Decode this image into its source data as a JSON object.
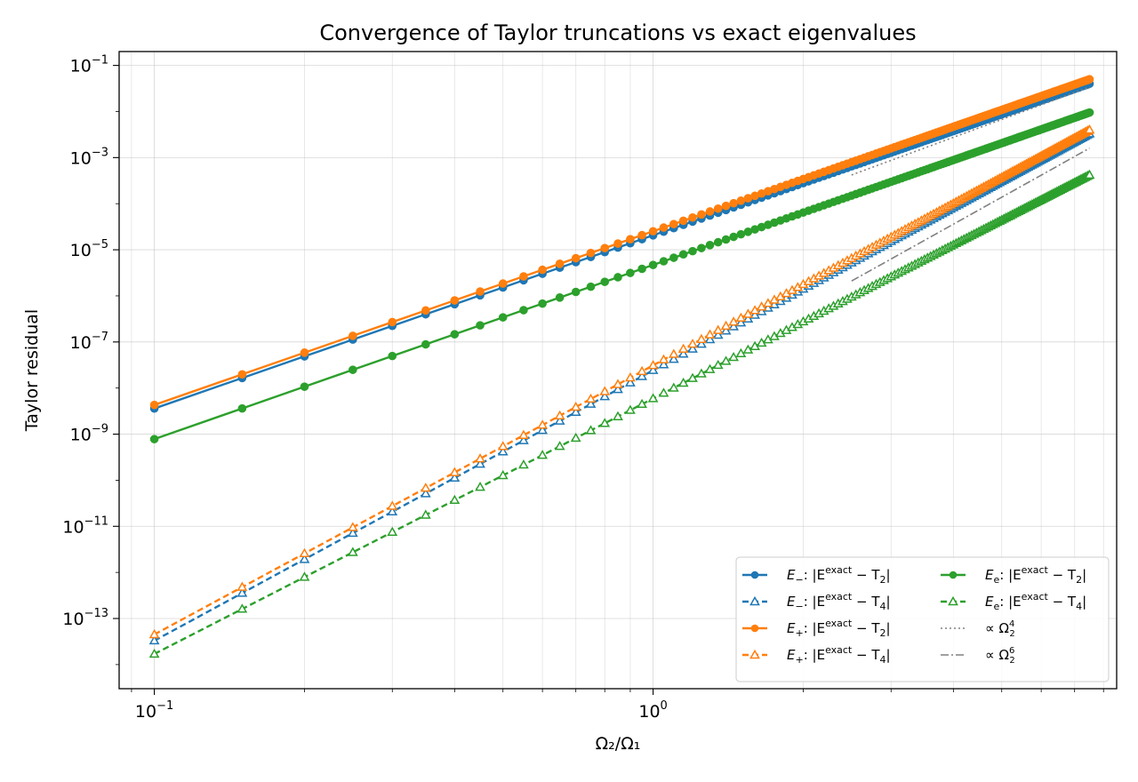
{
  "chart_data": {
    "type": "line",
    "title": "Convergence of Taylor truncations vs exact eigenvalues",
    "xlabel": "Ω₂/Ω₁",
    "ylabel": "Taylor residual",
    "xscale": "log",
    "yscale": "log",
    "xlim": [
      0.085,
      8.5
    ],
    "ylim": [
      3e-15,
      0.2
    ],
    "grid": true,
    "legend_position": "lower-right",
    "x_major_ticks": [
      {
        "value": 0.1,
        "base": "10",
        "exp": "−1"
      },
      {
        "value": 1,
        "base": "10",
        "exp": "0"
      }
    ],
    "y_major_ticks": [
      {
        "value": 0.1,
        "base": "10",
        "exp": "−1"
      },
      {
        "value": 0.001,
        "base": "10",
        "exp": "−3"
      },
      {
        "value": 1e-05,
        "base": "10",
        "exp": "−5"
      },
      {
        "value": 1e-07,
        "base": "10",
        "exp": "−7"
      },
      {
        "value": 1e-09,
        "base": "10",
        "exp": "−9"
      },
      {
        "value": 1e-11,
        "base": "10",
        "exp": "−11"
      },
      {
        "value": 1e-13,
        "base": "10",
        "exp": "−13"
      }
    ],
    "x_range": [
      0.1,
      7.5
    ],
    "x_step": 0.05,
    "series": [
      {
        "name": "E₋: |E^exact − T₂|",
        "sym": "E",
        "sub": "−",
        "order": "2",
        "color": "#1f77b4",
        "linestyle": "solid",
        "marker": "circle",
        "filled": true,
        "x0": 0.1,
        "y0": 3.6e-09,
        "slope": 4,
        "x_end": 7.5,
        "y_end": 0.04
      },
      {
        "name": "E₋: |E^exact − T₄|",
        "sym": "E",
        "sub": "−",
        "order": "4",
        "color": "#1f77b4",
        "linestyle": "dashed",
        "marker": "triangle",
        "filled": false,
        "x0": 0.1,
        "y0": 3.3e-14,
        "slope": 6,
        "x_end": 7.5,
        "y_end": 0.0033
      },
      {
        "name": "E₊: |E^exact − T₂|",
        "sym": "E",
        "sub": "+",
        "order": "2",
        "color": "#ff7f0e",
        "linestyle": "solid",
        "marker": "circle",
        "filled": true,
        "x0": 0.1,
        "y0": 4.3e-09,
        "slope": 4,
        "x_end": 7.5,
        "y_end": 0.05
      },
      {
        "name": "E₊: |E^exact − T₄|",
        "sym": "E",
        "sub": "+",
        "order": "4",
        "color": "#ff7f0e",
        "linestyle": "dashed",
        "marker": "triangle",
        "filled": false,
        "x0": 0.1,
        "y0": 4.5e-14,
        "slope": 6,
        "x_end": 7.5,
        "y_end": 0.004
      },
      {
        "name": "Eₑ: |E^exact − T₂|",
        "sym": "E",
        "sub": "e",
        "order": "2",
        "color": "#2ca02c",
        "linestyle": "solid",
        "marker": "circle",
        "filled": true,
        "x0": 0.1,
        "y0": 7.8e-10,
        "slope": 3.7,
        "x_end": 7.5,
        "y_end": 0.0095
      },
      {
        "name": "Eₑ: |E^exact − T₄|",
        "sym": "E",
        "sub": "e",
        "order": "4",
        "color": "#2ca02c",
        "linestyle": "dashed",
        "marker": "triangle",
        "filled": false,
        "x0": 0.1,
        "y0": 1.7e-14,
        "slope": 5.6,
        "x_end": 7.5,
        "y_end": 0.00042
      }
    ],
    "references": [
      {
        "name": "∝ Ω₂⁴",
        "power": "4",
        "color": "#808080",
        "linestyle": "dotted",
        "x": [
          2.5,
          7.5
        ],
        "y": [
          0.00042,
          0.034
        ]
      },
      {
        "name": "∝ Ω₂⁶",
        "power": "6",
        "color": "#808080",
        "linestyle": "dashdot",
        "x": [
          2.5,
          7.5
        ],
        "y": [
          2.1e-06,
          0.0016
        ]
      }
    ],
    "legend_labels": {
      "exact_superscript": "exact",
      "residual_prefix": "|E",
      "minus": " − T",
      "prop": "∝ Ω"
    }
  }
}
